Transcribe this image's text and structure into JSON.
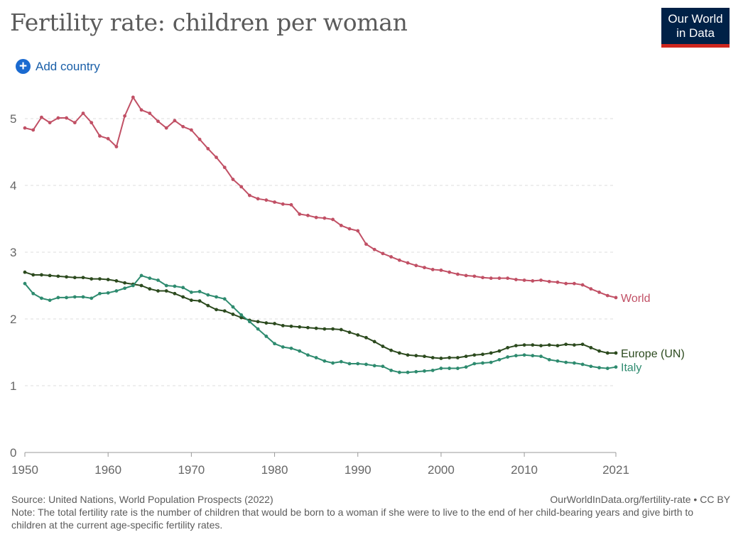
{
  "header": {
    "title": "Fertility rate: children per woman",
    "logo_line1": "Our World",
    "logo_line2": "in Data",
    "add_country_label": "Add country"
  },
  "footer": {
    "source": "Source: United Nations, World Population Prospects (2022)",
    "url_license": "OurWorldInData.org/fertility-rate • CC BY",
    "note": "Note: The total fertility rate is the number of children that would be born to a woman if she were to live to the end of her child-bearing years and give birth to children at the current age-specific fertility rates."
  },
  "chart_data": {
    "type": "line",
    "title": "Fertility rate: children per woman",
    "xlabel": "",
    "ylabel": "",
    "xlim": [
      1950,
      2021
    ],
    "ylim": [
      0,
      5.4
    ],
    "x_ticks": [
      "1950",
      "1960",
      "1970",
      "1980",
      "1990",
      "2000",
      "2010",
      "2021"
    ],
    "x_tick_values": [
      1950,
      1960,
      1970,
      1980,
      1990,
      2000,
      2010,
      2021
    ],
    "y_ticks": [
      "0",
      "1",
      "2",
      "3",
      "4",
      "5"
    ],
    "y_tick_values": [
      0,
      1,
      2,
      3,
      4,
      5
    ],
    "grid": "horizontal dashed",
    "legend": "labels at line ends (right)",
    "x": [
      1950,
      1951,
      1952,
      1953,
      1954,
      1955,
      1956,
      1957,
      1958,
      1959,
      1960,
      1961,
      1962,
      1963,
      1964,
      1965,
      1966,
      1967,
      1968,
      1969,
      1970,
      1971,
      1972,
      1973,
      1974,
      1975,
      1976,
      1977,
      1978,
      1979,
      1980,
      1981,
      1982,
      1983,
      1984,
      1985,
      1986,
      1987,
      1988,
      1989,
      1990,
      1991,
      1992,
      1993,
      1994,
      1995,
      1996,
      1997,
      1998,
      1999,
      2000,
      2001,
      2002,
      2003,
      2004,
      2005,
      2006,
      2007,
      2008,
      2009,
      2010,
      2011,
      2012,
      2013,
      2014,
      2015,
      2016,
      2017,
      2018,
      2019,
      2020,
      2021
    ],
    "series": [
      {
        "name": "World",
        "color": "#c15065",
        "values": [
          4.86,
          4.83,
          5.02,
          4.94,
          5.01,
          5.01,
          4.94,
          5.08,
          4.94,
          4.74,
          4.7,
          4.58,
          5.04,
          5.32,
          5.13,
          5.08,
          4.96,
          4.86,
          4.97,
          4.88,
          4.83,
          4.69,
          4.55,
          4.42,
          4.27,
          4.09,
          3.98,
          3.85,
          3.8,
          3.78,
          3.75,
          3.72,
          3.71,
          3.57,
          3.55,
          3.52,
          3.51,
          3.49,
          3.4,
          3.35,
          3.32,
          3.12,
          3.04,
          2.98,
          2.93,
          2.88,
          2.84,
          2.8,
          2.77,
          2.74,
          2.73,
          2.7,
          2.67,
          2.65,
          2.64,
          2.62,
          2.61,
          2.61,
          2.61,
          2.59,
          2.58,
          2.57,
          2.58,
          2.56,
          2.55,
          2.53,
          2.53,
          2.51,
          2.45,
          2.4,
          2.35,
          2.32
        ]
      },
      {
        "name": "Europe (UN)",
        "color": "#2c4a1e",
        "values": [
          2.7,
          2.66,
          2.66,
          2.65,
          2.64,
          2.63,
          2.62,
          2.62,
          2.6,
          2.6,
          2.59,
          2.57,
          2.54,
          2.52,
          2.5,
          2.45,
          2.42,
          2.42,
          2.38,
          2.33,
          2.28,
          2.27,
          2.2,
          2.14,
          2.12,
          2.07,
          2.02,
          1.98,
          1.96,
          1.94,
          1.93,
          1.9,
          1.89,
          1.88,
          1.87,
          1.86,
          1.85,
          1.85,
          1.84,
          1.8,
          1.76,
          1.72,
          1.66,
          1.59,
          1.53,
          1.49,
          1.46,
          1.45,
          1.44,
          1.42,
          1.41,
          1.42,
          1.42,
          1.44,
          1.46,
          1.47,
          1.49,
          1.52,
          1.57,
          1.6,
          1.61,
          1.61,
          1.6,
          1.61,
          1.6,
          1.62,
          1.61,
          1.62,
          1.57,
          1.52,
          1.49,
          1.49
        ]
      },
      {
        "name": "Italy",
        "color": "#2e8b6f",
        "values": [
          2.53,
          2.38,
          2.31,
          2.28,
          2.32,
          2.32,
          2.33,
          2.33,
          2.31,
          2.38,
          2.39,
          2.42,
          2.46,
          2.5,
          2.65,
          2.61,
          2.58,
          2.5,
          2.49,
          2.47,
          2.4,
          2.41,
          2.36,
          2.33,
          2.3,
          2.18,
          2.06,
          1.96,
          1.85,
          1.74,
          1.63,
          1.58,
          1.56,
          1.52,
          1.46,
          1.42,
          1.37,
          1.34,
          1.36,
          1.33,
          1.33,
          1.32,
          1.3,
          1.29,
          1.23,
          1.2,
          1.2,
          1.21,
          1.22,
          1.23,
          1.26,
          1.26,
          1.26,
          1.28,
          1.33,
          1.34,
          1.35,
          1.39,
          1.43,
          1.45,
          1.46,
          1.45,
          1.44,
          1.39,
          1.37,
          1.35,
          1.34,
          1.32,
          1.29,
          1.27,
          1.26,
          1.28
        ]
      }
    ]
  }
}
